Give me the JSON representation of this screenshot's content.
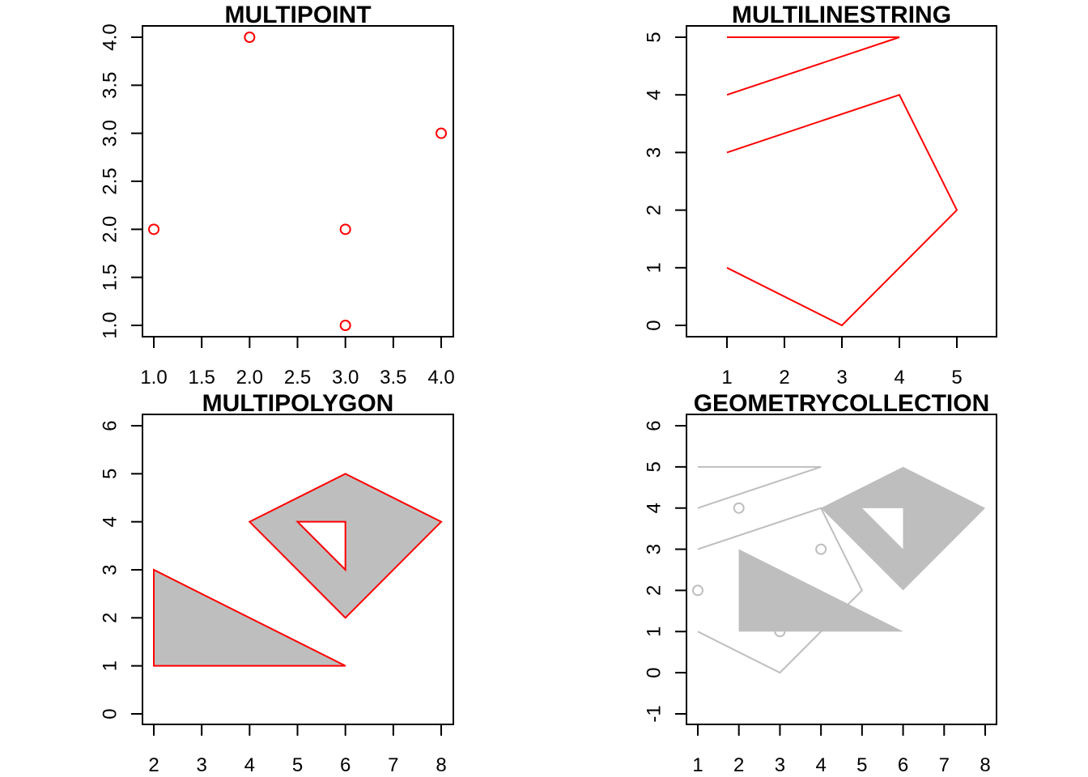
{
  "chart_data": [
    {
      "type": "scatter",
      "title": "MULTIPOINT",
      "xlabel": "",
      "ylabel": "",
      "xlim": [
        1.0,
        4.0
      ],
      "ylim": [
        1.0,
        4.0
      ],
      "xticks": [
        "1.0",
        "1.5",
        "2.0",
        "2.5",
        "3.0",
        "3.5",
        "4.0"
      ],
      "yticks": [
        "1.0",
        "1.5",
        "2.0",
        "2.5",
        "3.0",
        "3.5",
        "4.0"
      ],
      "grid": false,
      "color": "#ff0000",
      "points": [
        [
          3,
          1
        ],
        [
          4,
          3
        ],
        [
          2,
          4
        ],
        [
          1,
          2
        ],
        [
          3,
          2
        ]
      ]
    },
    {
      "type": "line",
      "title": "MULTILINESTRING",
      "xlabel": "",
      "ylabel": "",
      "xlim": [
        1,
        5
      ],
      "ylim": [
        0,
        5
      ],
      "xticks": [
        "1",
        "2",
        "3",
        "4",
        "5"
      ],
      "yticks": [
        "0",
        "1",
        "2",
        "3",
        "4",
        "5"
      ],
      "grid": false,
      "color": "#ff0000",
      "lines": [
        [
          [
            1,
            1
          ],
          [
            3,
            0
          ],
          [
            5,
            2
          ],
          [
            4,
            4
          ],
          [
            1,
            3
          ]
        ],
        [
          [
            1,
            4
          ],
          [
            4,
            5
          ],
          [
            1,
            5
          ]
        ]
      ]
    },
    {
      "type": "area",
      "title": "MULTIPOLYGON",
      "xlabel": "",
      "ylabel": "",
      "xlim": [
        2,
        8
      ],
      "ylim": [
        0,
        6
      ],
      "xticks": [
        "2",
        "3",
        "4",
        "5",
        "6",
        "7",
        "8"
      ],
      "yticks": [
        "0",
        "1",
        "2",
        "3",
        "4",
        "5",
        "6"
      ],
      "grid": false,
      "color": "#ff0000",
      "fill": "#bebebe",
      "polygons": [
        [
          [
            [
              2,
              1
            ],
            [
              2,
              3
            ],
            [
              6,
              1
            ],
            [
              2,
              1
            ]
          ]
        ],
        [
          [
            [
              4,
              4
            ],
            [
              6,
              5
            ],
            [
              8,
              4
            ],
            [
              6,
              2
            ],
            [
              4,
              4
            ]
          ],
          [
            [
              5,
              4
            ],
            [
              6,
              4
            ],
            [
              6,
              3
            ],
            [
              5,
              4
            ]
          ]
        ]
      ]
    },
    {
      "type": "area",
      "title": "GEOMETRYCOLLECTION",
      "xlabel": "",
      "ylabel": "",
      "xlim": [
        1,
        8
      ],
      "ylim": [
        -1,
        6
      ],
      "xticks": [
        "1",
        "2",
        "3",
        "4",
        "5",
        "6",
        "7",
        "8"
      ],
      "yticks": [
        "-1",
        "0",
        "1",
        "2",
        "3",
        "4",
        "5",
        "6"
      ],
      "grid": false,
      "color": "#bebebe",
      "fill": "#bebebe",
      "points": [
        [
          3,
          1
        ],
        [
          4,
          3
        ],
        [
          2,
          4
        ],
        [
          1,
          2
        ],
        [
          3,
          2
        ]
      ],
      "lines": [
        [
          [
            1,
            1
          ],
          [
            3,
            0
          ],
          [
            5,
            2
          ],
          [
            4,
            4
          ],
          [
            1,
            3
          ]
        ],
        [
          [
            1,
            4
          ],
          [
            4,
            5
          ],
          [
            1,
            5
          ]
        ]
      ],
      "polygons": [
        [
          [
            [
              2,
              1
            ],
            [
              2,
              3
            ],
            [
              6,
              1
            ],
            [
              2,
              1
            ]
          ]
        ],
        [
          [
            [
              4,
              4
            ],
            [
              6,
              5
            ],
            [
              8,
              4
            ],
            [
              6,
              2
            ],
            [
              4,
              4
            ]
          ],
          [
            [
              5,
              4
            ],
            [
              6,
              4
            ],
            [
              6,
              3
            ],
            [
              5,
              4
            ]
          ]
        ]
      ]
    }
  ]
}
